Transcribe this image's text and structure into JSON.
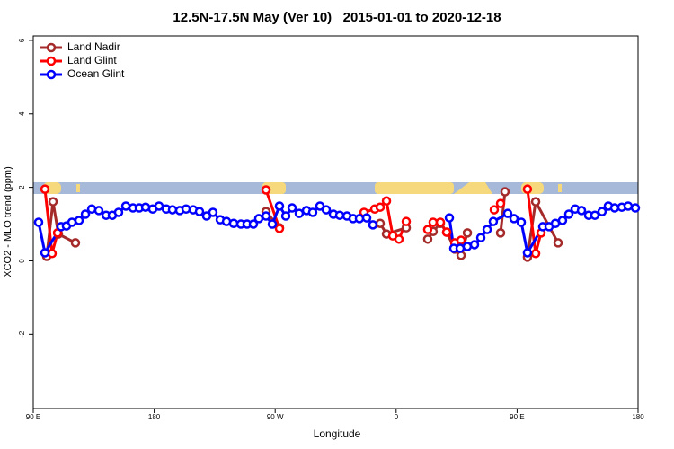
{
  "chart_data": {
    "type": "line",
    "title": "12.5N-17.5N May (Ver 10)   2015-01-01 to 2020-12-18",
    "x_label": "Longitude",
    "y_label": "XCO2 - MLO trend (ppm)",
    "xlim": [
      90,
      540
    ],
    "xticks": [
      {
        "value": 90,
        "label": "90 E"
      },
      {
        "value": 180,
        "label": "180"
      },
      {
        "value": 270,
        "label": "90 W"
      },
      {
        "value": 360,
        "label": "0"
      },
      {
        "value": 450,
        "label": "90 E"
      },
      {
        "value": 540,
        "label": "180"
      }
    ],
    "ylim": [
      -4.02,
      6.12
    ],
    "yticks": [
      -2,
      0,
      2,
      4,
      6
    ],
    "legend": "top-left",
    "series": [
      {
        "name": "Land Nadir",
        "color": "#a52a2a",
        "x": [
          100.0,
          104.7,
          108.7,
          121.4,
          200,
          263.2,
          273.2,
          320,
          348.1,
          352.8,
          367.5,
          375,
          383.5,
          387.5,
          392.9,
          397.6,
          403.6,
          408.3,
          413.0,
          425,
          437.7,
          441.0,
          450,
          457.7,
          463.8,
          480.5
        ],
        "values": [
          0.12,
          1.61,
          0.73,
          0.49,
          null,
          1.34,
          0.9,
          null,
          1.02,
          0.73,
          0.9,
          null,
          0.59,
          0.8,
          1.02,
          0.78,
          0.32,
          0.15,
          0.76,
          null,
          0.76,
          1.88,
          null,
          0.1,
          1.61,
          0.49
        ]
      },
      {
        "name": "Land Glint",
        "color": "#ff0000",
        "x": [
          98.7,
          104.0,
          108.1,
          200,
          263.2,
          273.2,
          320,
          336.1,
          344.1,
          348.1,
          352.8,
          357.5,
          362.1,
          367.5,
          375,
          383.5,
          387.5,
          392.9,
          397.6,
          403.6,
          408.3,
          420,
          433.0,
          437.7,
          450,
          457.7,
          463.8,
          467.8
        ],
        "values": [
          1.95,
          0.2,
          0.76,
          null,
          1.93,
          0.88,
          null,
          1.32,
          1.41,
          1.46,
          1.63,
          0.68,
          0.59,
          1.07,
          null,
          0.85,
          1.05,
          1.05,
          0.78,
          0.49,
          0.56,
          null,
          1.39,
          1.56,
          null,
          1.95,
          0.2,
          0.76
        ]
      },
      {
        "name": "Ocean Glint",
        "color": "#0000ff",
        "x": [
          94.0,
          98.7,
          110.7,
          114.7,
          118.8,
          124.1,
          128.8,
          133.5,
          138.8,
          144.2,
          148.8,
          153.5,
          158.9,
          164.2,
          168.9,
          173.6,
          178.9,
          183.6,
          189.0,
          193.6,
          199.0,
          203.7,
          209.0,
          213.7,
          219.0,
          223.7,
          229.1,
          233.8,
          239.1,
          244.5,
          249.1,
          253.8,
          257.8,
          263.2,
          267.9,
          273.2,
          277.9,
          282.6,
          287.9,
          293.3,
          297.9,
          303.3,
          308.0,
          313.3,
          318.0,
          323.4,
          328.0,
          332.7,
          338.1,
          342.7,
          370,
          399.6,
          402.9,
          407.6,
          412.9,
          418.3,
          423.0,
          427.7,
          432.3,
          443.0,
          447.7,
          453.1,
          457.7,
          469.1,
          473.8,
          478.5,
          483.8,
          488.5,
          493.2,
          497.9,
          503.2,
          507.9,
          513.2,
          517.9,
          522.6,
          527.9,
          532.6,
          538.0
        ],
        "values": [
          1.05,
          0.22,
          0.93,
          0.95,
          1.05,
          1.1,
          1.27,
          1.41,
          1.37,
          1.24,
          1.24,
          1.32,
          1.49,
          1.44,
          1.44,
          1.46,
          1.41,
          1.49,
          1.41,
          1.39,
          1.37,
          1.41,
          1.39,
          1.34,
          1.22,
          1.32,
          1.12,
          1.07,
          1.02,
          1.0,
          1.0,
          1.0,
          1.15,
          1.22,
          1.0,
          1.49,
          1.22,
          1.44,
          1.29,
          1.37,
          1.32,
          1.49,
          1.39,
          1.27,
          1.24,
          1.22,
          1.15,
          1.15,
          1.17,
          0.98,
          null,
          1.17,
          0.34,
          0.34,
          0.39,
          0.44,
          0.63,
          0.85,
          1.07,
          1.29,
          1.15,
          1.05,
          0.22,
          0.93,
          0.93,
          1.02,
          1.1,
          1.27,
          1.41,
          1.37,
          1.24,
          1.24,
          1.34,
          1.49,
          1.44,
          1.46,
          1.49,
          1.44
        ]
      }
    ]
  }
}
